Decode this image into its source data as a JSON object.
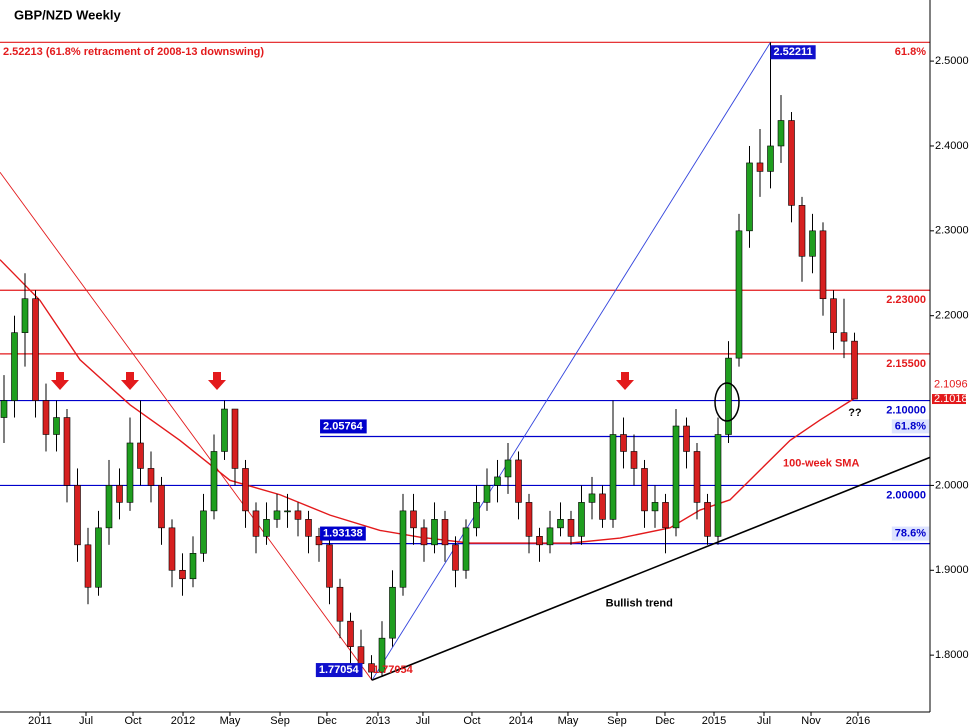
{
  "chart_data": {
    "type": "candlestick",
    "title": "GBP/NZD Weekly",
    "x": [
      0,
      1,
      2,
      3,
      4,
      5,
      6,
      7,
      8,
      9,
      10,
      11,
      12,
      13,
      14,
      15,
      16,
      17,
      18,
      19,
      20,
      21,
      22,
      23,
      24,
      25,
      26,
      27,
      28,
      29,
      30,
      31,
      32,
      33,
      34,
      35,
      36,
      37,
      38,
      39,
      40,
      41,
      42,
      43,
      44,
      45,
      46,
      47,
      48,
      49,
      50,
      51,
      52,
      53,
      54,
      55,
      56,
      57,
      58,
      59,
      60,
      61,
      62,
      63,
      64,
      65,
      66,
      67,
      68,
      69,
      70,
      71,
      72,
      73,
      74,
      75,
      76,
      77,
      78,
      79,
      80,
      81
    ],
    "open": [
      2.08,
      2.1,
      2.18,
      2.22,
      2.1,
      2.06,
      2.08,
      2.0,
      1.93,
      1.88,
      1.95,
      2.0,
      1.98,
      2.05,
      2.02,
      2.0,
      1.95,
      1.9,
      1.89,
      1.92,
      1.97,
      2.04,
      2.09,
      2.02,
      1.97,
      1.94,
      1.96,
      1.97,
      1.97,
      1.96,
      1.94,
      1.93,
      1.88,
      1.84,
      1.81,
      1.79,
      1.78,
      1.82,
      1.88,
      1.97,
      1.95,
      1.93,
      1.96,
      1.93,
      1.9,
      1.95,
      1.98,
      2.0,
      2.01,
      2.03,
      1.98,
      1.94,
      1.93,
      1.95,
      1.96,
      1.94,
      1.98,
      1.99,
      1.96,
      2.06,
      2.04,
      2.02,
      1.97,
      1.98,
      1.95,
      2.07,
      2.04,
      1.98,
      1.94,
      2.06,
      2.15,
      2.3,
      2.38,
      2.37,
      2.4,
      2.43,
      2.33,
      2.27,
      2.3,
      2.22,
      2.18,
      2.17
    ],
    "high": [
      2.13,
      2.2,
      2.25,
      2.23,
      2.12,
      2.1,
      2.09,
      2.02,
      1.95,
      1.97,
      2.03,
      2.02,
      2.08,
      2.1,
      2.04,
      2.01,
      1.96,
      1.92,
      1.94,
      1.99,
      2.06,
      2.1,
      2.09,
      2.03,
      1.98,
      1.98,
      1.99,
      1.99,
      1.98,
      1.97,
      1.95,
      1.94,
      1.89,
      1.85,
      1.83,
      1.8,
      1.84,
      1.9,
      1.99,
      1.99,
      1.96,
      1.98,
      1.97,
      1.94,
      1.96,
      2.0,
      2.02,
      2.03,
      2.05,
      2.04,
      1.99,
      1.95,
      1.97,
      1.98,
      1.97,
      2.0,
      2.01,
      2.0,
      2.1,
      2.08,
      2.06,
      2.03,
      2.0,
      1.99,
      2.09,
      2.08,
      2.05,
      1.99,
      2.08,
      2.17,
      2.32,
      2.4,
      2.42,
      2.5221,
      2.46,
      2.44,
      2.34,
      2.32,
      2.31,
      2.23,
      2.22,
      2.18
    ],
    "low": [
      2.05,
      2.08,
      2.14,
      2.08,
      2.04,
      2.04,
      1.98,
      1.91,
      1.86,
      1.87,
      1.93,
      1.96,
      1.97,
      2.0,
      1.98,
      1.93,
      1.88,
      1.87,
      1.88,
      1.91,
      1.96,
      2.03,
      2.0,
      1.95,
      1.92,
      1.93,
      1.95,
      1.95,
      1.94,
      1.92,
      1.91,
      1.86,
      1.82,
      1.79,
      1.78,
      1.7705,
      1.775,
      1.81,
      1.87,
      1.93,
      1.91,
      1.92,
      1.91,
      1.88,
      1.89,
      1.94,
      1.97,
      1.98,
      1.99,
      1.96,
      1.92,
      1.91,
      1.92,
      1.94,
      1.93,
      1.93,
      1.96,
      1.95,
      1.95,
      2.02,
      2.0,
      1.95,
      1.95,
      1.92,
      1.94,
      2.02,
      1.96,
      1.93,
      1.93,
      2.05,
      2.14,
      2.28,
      2.34,
      2.35,
      2.38,
      2.31,
      2.24,
      2.25,
      2.2,
      2.16,
      2.15,
      2.1018
    ],
    "close": [
      2.1,
      2.18,
      2.22,
      2.1,
      2.06,
      2.08,
      2.0,
      1.93,
      1.88,
      1.95,
      2.0,
      1.98,
      2.05,
      2.02,
      2.0,
      1.95,
      1.9,
      1.89,
      1.92,
      1.97,
      2.04,
      2.09,
      2.02,
      1.97,
      1.94,
      1.96,
      1.97,
      1.97,
      1.96,
      1.94,
      1.93,
      1.88,
      1.84,
      1.81,
      1.79,
      1.78,
      1.82,
      1.88,
      1.97,
      1.95,
      1.93,
      1.96,
      1.93,
      1.9,
      1.95,
      1.98,
      2.0,
      2.01,
      2.03,
      1.98,
      1.94,
      1.93,
      1.95,
      1.96,
      1.94,
      1.98,
      1.99,
      1.96,
      2.06,
      2.04,
      2.02,
      1.97,
      1.98,
      1.95,
      2.07,
      2.04,
      1.98,
      1.94,
      2.06,
      2.15,
      2.3,
      2.38,
      2.37,
      2.4,
      2.43,
      2.33,
      2.27,
      2.3,
      2.22,
      2.18,
      2.17,
      2.1018
    ],
    "up_color": "#1f9e1f",
    "down_color": "#d62020",
    "sma": {
      "color": "#e31a1c",
      "x": [
        -0.38,
        3.43,
        7.24,
        12,
        16.76,
        21.52,
        26.29,
        31.05,
        35.81,
        39.62,
        44.38,
        49.14,
        53.9,
        58.67,
        63.43,
        66.29,
        69.14,
        72,
        74.86,
        77.71,
        81.05
      ],
      "values": [
        2.266,
        2.218,
        2.148,
        2.095,
        2.053,
        2.006,
        1.989,
        1.965,
        1.947,
        1.939,
        1.932,
        1.932,
        1.932,
        1.938,
        1.95,
        1.971,
        1.983,
        2.018,
        2.053,
        2.077,
        2.103
      ]
    },
    "levels": [
      {
        "value": 2.52213,
        "label": "2.52213 (61.8% retracment of 2008-13 downswing)",
        "right_label": "61.8%",
        "color": "#e31a1c"
      },
      {
        "value": 2.23,
        "label": "2.23000",
        "color": "#e31a1c"
      },
      {
        "value": 2.155,
        "label": "2.15500",
        "color": "#e31a1c"
      },
      {
        "value": 2.1,
        "label": "2.10000",
        "color": "#0000cc"
      },
      {
        "value": 2.05764,
        "label": "2.05764",
        "right_label": "61.8%",
        "color": "#0000cc",
        "x_start": 30.1
      },
      {
        "value": 2.0,
        "label": "2.00000",
        "color": "#0000cc"
      },
      {
        "value": 1.93138,
        "label": "1.93138",
        "right_label": "78.6%",
        "color": "#0000cc",
        "x_start": 30.1
      }
    ],
    "trendlines": [
      {
        "color": "#e31a1c",
        "x": [
          -0.38,
          35.05
        ],
        "values": [
          2.369,
          1.7705
        ]
      },
      {
        "color": "#3344dd",
        "x": [
          35.05,
          73
        ],
        "values": [
          1.7705,
          2.5221
        ]
      },
      {
        "color": "#000000",
        "x": [
          35.05,
          88.19
        ],
        "values": [
          1.7705,
          2.033
        ]
      }
    ],
    "point_labels": [
      {
        "label": "2.52211",
        "x": 73,
        "value": 2.52211
      },
      {
        "label": "1.77054",
        "x": 29.7,
        "value": 1.77054
      }
    ],
    "annotations": [
      {
        "text": "1.77054",
        "x": 35.14,
        "value": 1.77054,
        "color": "#e31a1c"
      },
      {
        "text": "100-week SMA",
        "x": 74.19,
        "value": 2.026,
        "color": "#e31a1c"
      },
      {
        "text": "Bullish trend",
        "x": 57.3,
        "value": 1.861,
        "color": "#000000"
      },
      {
        "text": "??",
        "x": 80.4,
        "value": 2.085,
        "color": "#000000"
      }
    ],
    "price_tags": [
      {
        "label": "2.1096",
        "value": 2.1096
      },
      {
        "label": "2.1018",
        "value": 2.1018
      }
    ],
    "xlim": [
      -0.38,
      88.19
    ],
    "ylim": [
      1.733,
      2.572
    ],
    "xticks": [
      {
        "value": 3.43,
        "label": "2011"
      },
      {
        "value": 7.81,
        "label": "Jul"
      },
      {
        "value": 12.29,
        "label": "Oct"
      },
      {
        "value": 17.05,
        "label": "2012"
      },
      {
        "value": 21.52,
        "label": "May"
      },
      {
        "value": 26.29,
        "label": "Sep"
      },
      {
        "value": 30.76,
        "label": "Dec"
      },
      {
        "value": 35.62,
        "label": "2013"
      },
      {
        "value": 39.9,
        "label": "Jul"
      },
      {
        "value": 44.57,
        "label": "Oct"
      },
      {
        "value": 49.24,
        "label": "2014"
      },
      {
        "value": 53.71,
        "label": "May"
      },
      {
        "value": 58.38,
        "label": "Sep"
      },
      {
        "value": 62.95,
        "label": "Dec"
      },
      {
        "value": 67.62,
        "label": "2015"
      },
      {
        "value": 72.38,
        "label": "Jul"
      },
      {
        "value": 76.86,
        "label": "Nov"
      },
      {
        "value": 81.33,
        "label": "2016"
      }
    ],
    "yticks": [
      {
        "value": 1.8,
        "label": "1.8000"
      },
      {
        "value": 1.9,
        "label": "1.9000"
      },
      {
        "value": 2.0,
        "label": "2.0000"
      },
      {
        "value": 2.2,
        "label": "2.2000"
      },
      {
        "value": 2.3,
        "label": "2.3000"
      },
      {
        "value": 2.4,
        "label": "2.4000"
      },
      {
        "value": 2.5,
        "label": "2.5000"
      }
    ]
  }
}
